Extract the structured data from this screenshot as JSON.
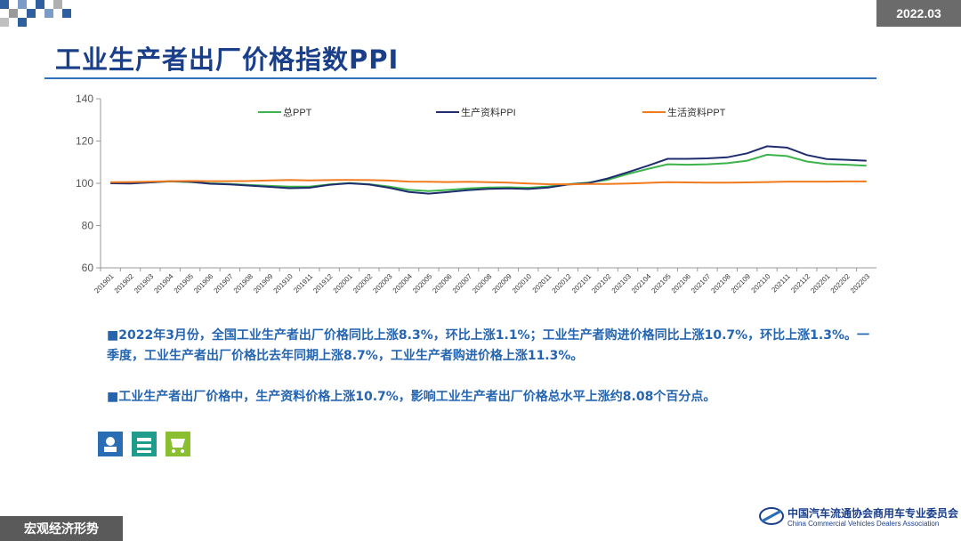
{
  "badge": "2022.03",
  "title": "工业生产者出厂价格指数PPI",
  "paragraphs": [
    "■2022年3月份，全国工业生产者出厂价格同比上涨8.3%，环比上涨1.1%；工业生产者购进价格同比上涨10.7%，环比上涨1.3%。一季度，工业生产者出厂价格比去年同期上涨8.7%，工业生产者购进价格上涨11.3%。",
    "■工业生产者出厂价格中，生产资料价格上涨10.7%，影响工业生产者出厂价格总水平上涨约8.08个百分点。"
  ],
  "footer": "宏观经济形势",
  "logo": {
    "cn": "中国汽车流通协会商用车专业委员会",
    "en": "China Commercial Vehicles Dealers Association"
  },
  "chart_data": {
    "type": "line",
    "categories": [
      "201901",
      "201902",
      "201903",
      "201904",
      "201905",
      "201906",
      "201907",
      "201908",
      "201909",
      "201910",
      "201911",
      "201912",
      "202001",
      "202002",
      "202003",
      "202004",
      "202005",
      "202006",
      "202007",
      "202008",
      "202009",
      "202010",
      "202011",
      "202012",
      "202101",
      "202102",
      "202103",
      "202104",
      "202105",
      "202106",
      "202107",
      "202108",
      "202109",
      "202110",
      "202111",
      "202112",
      "202201",
      "202202",
      "202203"
    ],
    "series": [
      {
        "name": "总PPT",
        "color": "#3cb44b",
        "values": [
          100.1,
          100.1,
          100.4,
          100.9,
          100.6,
          100.0,
          99.7,
          99.2,
          98.8,
          98.4,
          98.4,
          99.5,
          100.1,
          99.6,
          98.5,
          96.9,
          96.3,
          96.9,
          97.6,
          98.0,
          98.1,
          97.9,
          98.5,
          99.6,
          100.3,
          101.7,
          104.4,
          106.8,
          109.0,
          108.8,
          109.0,
          109.5,
          110.7,
          113.5,
          112.9,
          110.3,
          109.1,
          108.8,
          108.3
        ]
      },
      {
        "name": "生产资料PPI",
        "color": "#1f2d6e",
        "values": [
          100.0,
          99.9,
          100.4,
          101.0,
          100.7,
          99.8,
          99.5,
          98.9,
          98.3,
          97.7,
          97.9,
          99.3,
          100.0,
          99.4,
          97.9,
          95.9,
          95.1,
          95.9,
          96.8,
          97.4,
          97.6,
          97.3,
          98.0,
          99.4,
          100.1,
          102.3,
          105.2,
          108.3,
          111.6,
          111.6,
          111.8,
          112.3,
          114.2,
          117.5,
          116.9,
          113.4,
          111.5,
          111.1,
          110.7
        ]
      },
      {
        "name": "生活资料PPT",
        "color": "#f07a1e",
        "values": [
          100.5,
          100.6,
          100.8,
          101.0,
          101.1,
          101.0,
          101.0,
          101.1,
          101.4,
          101.6,
          101.4,
          101.5,
          101.6,
          101.5,
          101.3,
          100.8,
          100.7,
          100.6,
          100.7,
          100.5,
          100.3,
          99.9,
          99.6,
          99.5,
          99.7,
          99.7,
          99.9,
          100.2,
          100.5,
          100.4,
          100.3,
          100.3,
          100.4,
          100.6,
          100.8,
          100.8,
          100.8,
          100.9,
          100.9
        ]
      }
    ],
    "ylim": [
      60,
      140
    ],
    "yticks": [
      60,
      80,
      100,
      120,
      140
    ],
    "legend": "top"
  }
}
